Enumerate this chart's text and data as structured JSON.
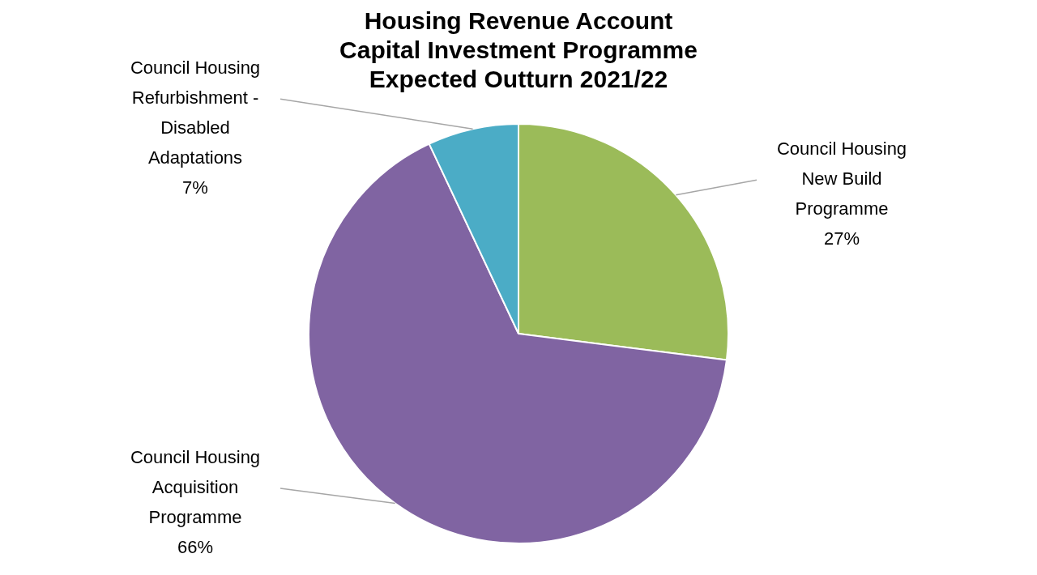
{
  "chart_data": {
    "type": "pie",
    "title": "Housing Revenue Account\nCapital Investment Programme\nExpected Outturn 2021/22",
    "categories": [
      "Council Housing New Build Programme",
      "Council Housing Acquisition Programme",
      "Council Housing Refurbishment - Disabled Adaptations"
    ],
    "values": [
      27,
      66,
      7
    ],
    "colors": [
      "#9bbb59",
      "#8064a2",
      "#4bacc6"
    ],
    "value_labels": [
      "27%",
      "66%",
      "7%"
    ],
    "legend": false
  }
}
